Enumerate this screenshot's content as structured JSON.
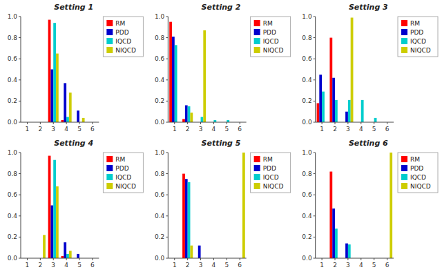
{
  "chart_data": [
    {
      "type": "bar",
      "title": "Setting 1",
      "categories": [
        "1",
        "2",
        "3",
        "4",
        "5",
        "6"
      ],
      "series": [
        {
          "name": "RM",
          "color": "#FF0000",
          "values": [
            0.0,
            0.0,
            0.97,
            0.02,
            0.0,
            0.0
          ]
        },
        {
          "name": "PDD",
          "color": "#0000CD",
          "values": [
            0.0,
            0.0,
            0.5,
            0.37,
            0.11,
            0.0
          ]
        },
        {
          "name": "IQCD",
          "color": "#00CDCD",
          "values": [
            0.0,
            0.0,
            0.94,
            0.05,
            0.0,
            0.0
          ]
        },
        {
          "name": "NIQCD",
          "color": "#CDCD00",
          "values": [
            0.0,
            0.0,
            0.65,
            0.28,
            0.04,
            0.0
          ]
        }
      ],
      "ylim": [
        0.0,
        1.0
      ],
      "yticks": [
        {
          "value": 0.0,
          "label": "0.0"
        },
        0.2,
        0.4,
        0.6,
        0.8,
        {
          "value": 1.0,
          "label": "1.0"
        }
      ],
      "grid": false,
      "legend": "top-right"
    },
    {
      "type": "bar",
      "title": "Setting 2",
      "categories": [
        "1",
        "2",
        "3",
        "4",
        "5",
        "6"
      ],
      "series": [
        {
          "name": "RM",
          "color": "#FF0000",
          "values": [
            0.95,
            0.03,
            0.0,
            0.0,
            0.0,
            0.0
          ]
        },
        {
          "name": "PDD",
          "color": "#0000CD",
          "values": [
            0.81,
            0.16,
            0.0,
            0.0,
            0.0,
            0.0
          ]
        },
        {
          "name": "IQCD",
          "color": "#00CDCD",
          "values": [
            0.73,
            0.15,
            0.05,
            0.02,
            0.02,
            0.0
          ]
        },
        {
          "name": "NIQCD",
          "color": "#CDCD00",
          "values": [
            0.0,
            0.09,
            0.87,
            0.0,
            0.0,
            0.0
          ]
        }
      ],
      "ylim": [
        0.0,
        1.0
      ],
      "yticks": [
        {
          "value": 0.0,
          "label": "0.0"
        },
        0.2,
        0.4,
        0.6,
        0.8,
        {
          "value": 1.0,
          "label": "1.0"
        }
      ],
      "grid": false,
      "legend": "top-right"
    },
    {
      "type": "bar",
      "title": "Setting 3",
      "categories": [
        "1",
        "2",
        "3",
        "4",
        "5",
        "6"
      ],
      "series": [
        {
          "name": "RM",
          "color": "#FF0000",
          "values": [
            0.18,
            0.8,
            0.0,
            0.0,
            0.0,
            0.0
          ]
        },
        {
          "name": "PDD",
          "color": "#0000CD",
          "values": [
            0.45,
            0.42,
            0.1,
            0.0,
            0.0,
            0.0
          ]
        },
        {
          "name": "IQCD",
          "color": "#00CDCD",
          "values": [
            0.29,
            0.21,
            0.21,
            0.21,
            0.04,
            0.0
          ]
        },
        {
          "name": "NIQCD",
          "color": "#CDCD00",
          "values": [
            0.0,
            0.0,
            0.99,
            0.0,
            0.0,
            0.0
          ]
        }
      ],
      "ylim": [
        0.0,
        1.0
      ],
      "yticks": [
        {
          "value": 0.0,
          "label": "0.0"
        },
        0.2,
        0.4,
        0.6,
        0.8,
        {
          "value": 1.0,
          "label": "1.0"
        }
      ],
      "grid": false,
      "legend": "top-right"
    },
    {
      "type": "bar",
      "title": "Setting 4",
      "categories": [
        "1",
        "2",
        "3",
        "4",
        "5",
        "6"
      ],
      "series": [
        {
          "name": "RM",
          "color": "#FF0000",
          "values": [
            0.0,
            0.0,
            0.97,
            0.02,
            0.0,
            0.0
          ]
        },
        {
          "name": "PDD",
          "color": "#0000CD",
          "values": [
            0.0,
            0.0,
            0.5,
            0.15,
            0.04,
            0.0
          ]
        },
        {
          "name": "IQCD",
          "color": "#00CDCD",
          "values": [
            0.0,
            0.0,
            0.93,
            0.04,
            0.0,
            0.0
          ]
        },
        {
          "name": "NIQCD",
          "color": "#CDCD00",
          "values": [
            0.0,
            0.22,
            0.68,
            0.07,
            0.0,
            0.0
          ]
        }
      ],
      "ylim": [
        0.0,
        1.0
      ],
      "yticks": [
        {
          "value": 0.0,
          "label": "0.0"
        },
        0.2,
        0.4,
        0.6,
        0.8,
        {
          "value": 1.0,
          "label": "1.0"
        }
      ],
      "grid": false,
      "legend": "top-right"
    },
    {
      "type": "bar",
      "title": "Setting 5",
      "categories": [
        "1",
        "2",
        "3",
        "4",
        "5",
        "6"
      ],
      "series": [
        {
          "name": "RM",
          "color": "#FF0000",
          "values": [
            0.0,
            0.8,
            0.0,
            0.0,
            0.0,
            0.0
          ]
        },
        {
          "name": "PDD",
          "color": "#0000CD",
          "values": [
            0.0,
            0.75,
            0.12,
            0.0,
            0.0,
            0.0
          ]
        },
        {
          "name": "IQCD",
          "color": "#00CDCD",
          "values": [
            0.0,
            0.72,
            0.0,
            0.0,
            0.0,
            0.0
          ]
        },
        {
          "name": "NIQCD",
          "color": "#CDCD00",
          "values": [
            0.0,
            0.12,
            0.0,
            0.0,
            0.0,
            1.0
          ]
        }
      ],
      "ylim": [
        0.0,
        1.0
      ],
      "yticks": [
        {
          "value": 0.0,
          "label": "0.0"
        },
        0.2,
        0.4,
        0.6,
        0.8,
        {
          "value": 1.0,
          "label": "1.0"
        }
      ],
      "grid": false,
      "legend": "top-right"
    },
    {
      "type": "bar",
      "title": "Setting 6",
      "categories": [
        "1",
        "2",
        "3",
        "4",
        "5",
        "6"
      ],
      "series": [
        {
          "name": "RM",
          "color": "#FF0000",
          "values": [
            0.0,
            0.82,
            0.0,
            0.0,
            0.0,
            0.0
          ]
        },
        {
          "name": "PDD",
          "color": "#0000CD",
          "values": [
            0.0,
            0.47,
            0.14,
            0.0,
            0.0,
            0.0
          ]
        },
        {
          "name": "IQCD",
          "color": "#00CDCD",
          "values": [
            0.0,
            0.28,
            0.13,
            0.0,
            0.0,
            0.0
          ]
        },
        {
          "name": "NIQCD",
          "color": "#CDCD00",
          "values": [
            0.0,
            0.0,
            0.0,
            0.0,
            0.0,
            1.0
          ]
        }
      ],
      "ylim": [
        0.0,
        1.0
      ],
      "yticks": [
        {
          "value": 0.0,
          "label": "0.0"
        },
        0.2,
        0.4,
        0.6,
        0.8,
        {
          "value": 1.0,
          "label": "1.0"
        }
      ],
      "grid": false,
      "legend": "top-right"
    }
  ]
}
